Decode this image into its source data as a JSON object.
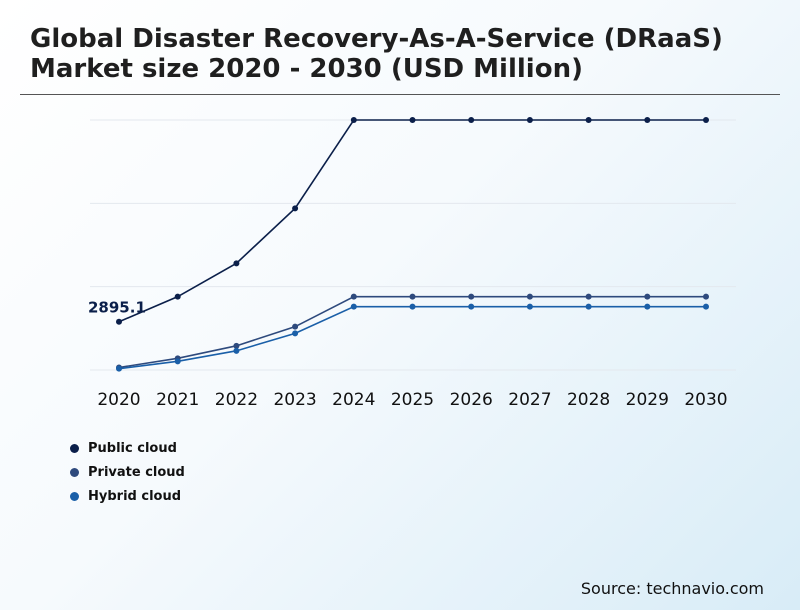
{
  "chart_data": {
    "type": "line",
    "title": "Global Disaster Recovery-As-A-Service (DRaaS) Market size 2020 - 2030 (USD Million)",
    "xlabel": "",
    "ylabel": "",
    "categories": [
      "2020",
      "2021",
      "2022",
      "2023",
      "2024",
      "2025",
      "2026",
      "2027",
      "2028",
      "2029",
      "2030"
    ],
    "ylim": [
      0,
      15000
    ],
    "grid": true,
    "series": [
      {
        "name": "Public cloud",
        "color": "#0b1f4a",
        "values": [
          2895.1,
          4400,
          6400,
          9700,
          15000,
          15000,
          15000,
          15000,
          15000,
          15000,
          15000
        ]
      },
      {
        "name": "Private cloud",
        "color": "#2e4a7d",
        "values": [
          150,
          700,
          1450,
          2600,
          4400,
          4400,
          4400,
          4400,
          4400,
          4400,
          4400
        ]
      },
      {
        "name": "Hybrid cloud",
        "color": "#1a5fa8",
        "values": [
          80,
          520,
          1150,
          2200,
          3800,
          3800,
          3800,
          3800,
          3800,
          3800,
          3800
        ]
      }
    ],
    "annotations": [
      {
        "series": 0,
        "index": 0,
        "text": "2895.1"
      }
    ],
    "legend_position": "bottom-left"
  },
  "source": "Source: technavio.com"
}
